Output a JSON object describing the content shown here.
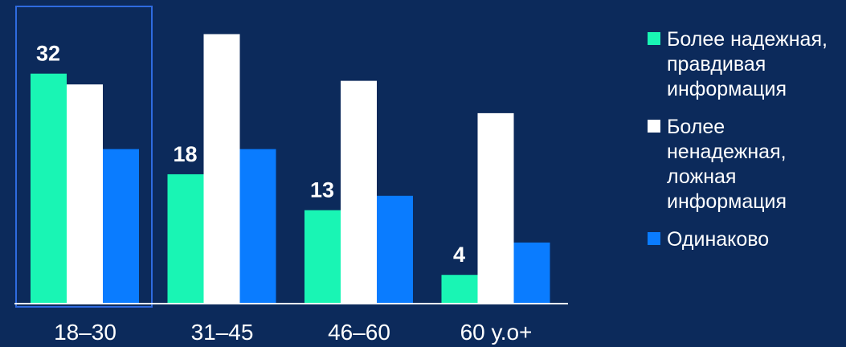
{
  "chart_data": {
    "type": "bar",
    "categories": [
      "18–30",
      "31–45",
      "46–60",
      "60 у.о+"
    ],
    "series": [
      {
        "name": "Более надежная, правдивая информация",
        "values": [
          32,
          18,
          13,
          4
        ],
        "color": "#19f5b4"
      },
      {
        "name": "Более ненадежная, ложная информация",
        "values": [
          30.5,
          37.5,
          31,
          26.5
        ],
        "color": "#ffffff"
      },
      {
        "name": "Одинаково",
        "values": [
          21.5,
          21.5,
          15,
          8.5
        ],
        "color": "#0a7cff"
      }
    ],
    "data_labels": [
      "32",
      "18",
      "13",
      "4"
    ],
    "ylim": [
      0,
      38
    ],
    "highlight_category": "18–30",
    "grid": false,
    "legend_position": "right"
  }
}
